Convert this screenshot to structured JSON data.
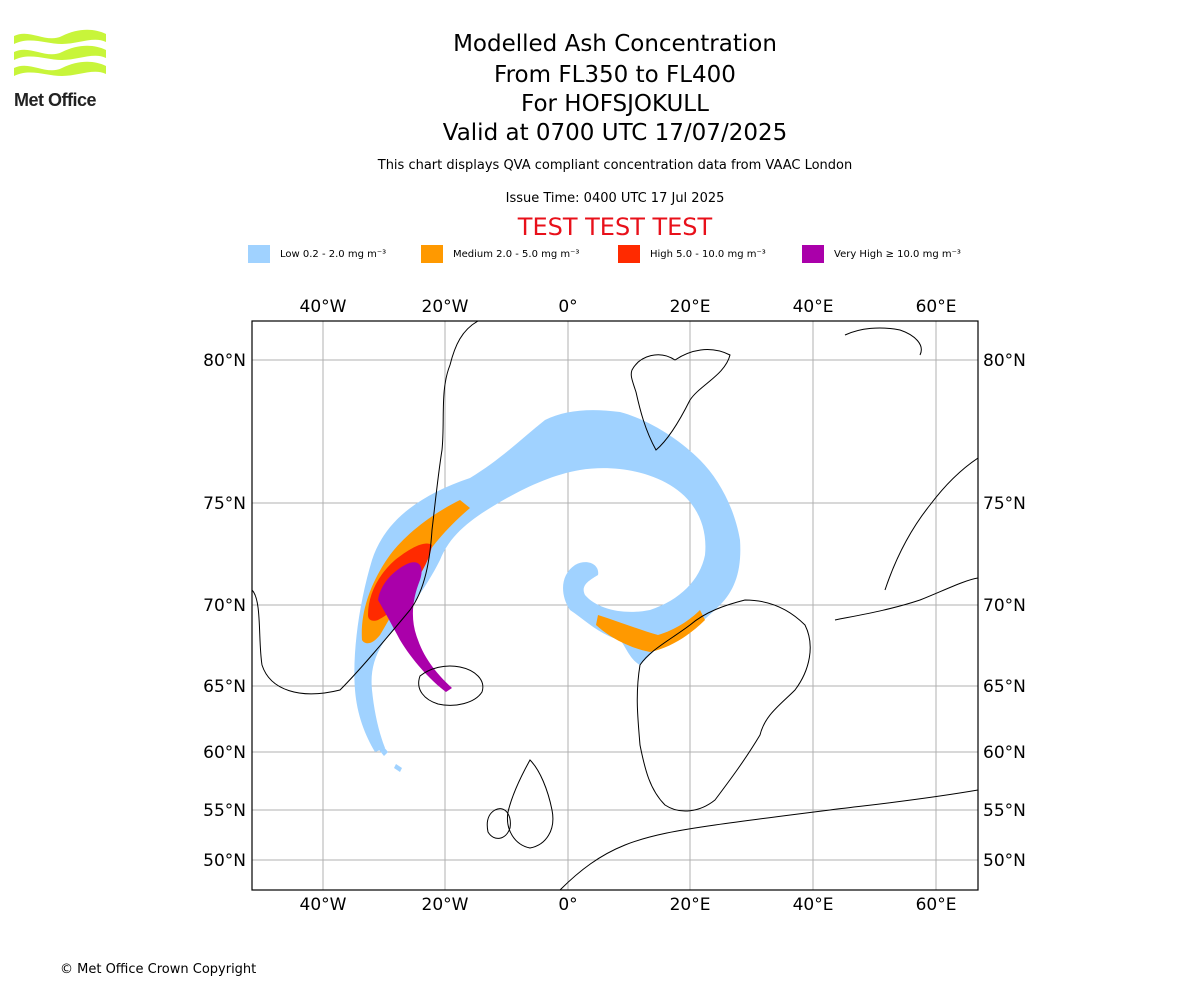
{
  "logo": {
    "brand": "Met Office",
    "color": "#c8f53a"
  },
  "title": {
    "line1": "Modelled Ash Concentration",
    "line2": "From FL350 to FL400",
    "line3": "For HOFSJOKULL",
    "line4": "Valid at 0700 UTC 17/07/2025"
  },
  "info": {
    "compliance": "This chart displays QVA compliant concentration data from VAAC London",
    "issue_time": "Issue Time: 0400 UTC 17 Jul 2025"
  },
  "test_banner": "TEST TEST TEST",
  "legend": [
    {
      "label": "Low 0.2 - 2.0 mg m⁻³",
      "color": "#a0d2ff"
    },
    {
      "label": "Medium 2.0 - 5.0 mg m⁻³",
      "color": "#ff9900"
    },
    {
      "label": "High 5.0 - 10.0 mg m⁻³",
      "color": "#ff2a00"
    },
    {
      "label": "Very High ≥ 10.0 mg m⁻³",
      "color": "#aa00aa"
    }
  ],
  "axes": {
    "lon_labels": [
      "40°W",
      "20°W",
      "0°",
      "20°E",
      "40°E",
      "60°E"
    ],
    "lat_labels": [
      "80°N",
      "75°N",
      "70°N",
      "65°N",
      "60°N",
      "55°N",
      "50°N"
    ]
  },
  "copyright": "© Met Office Crown Copyright"
}
